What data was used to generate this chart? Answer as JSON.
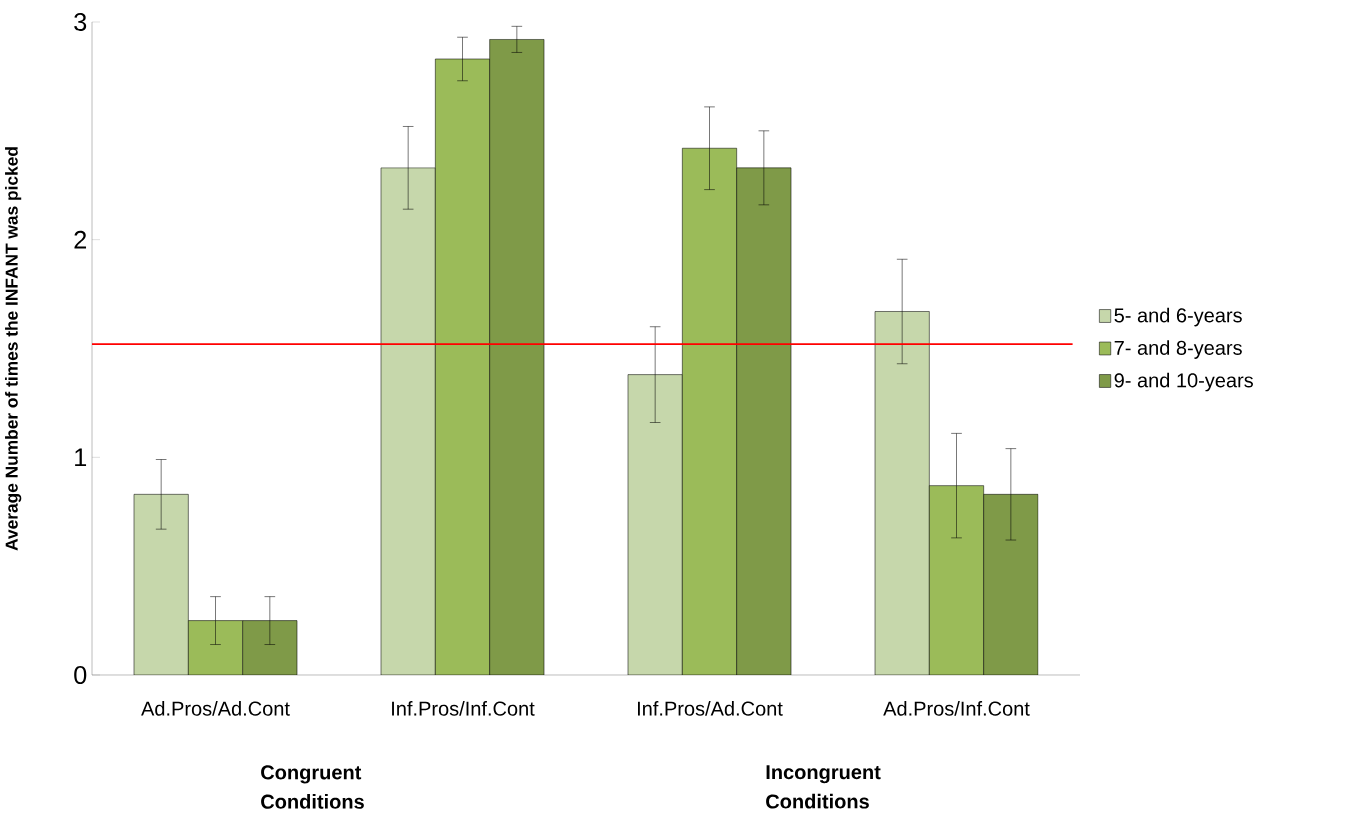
{
  "chart_data": {
    "type": "bar",
    "ylabel": "Average Number of times the INFANT was picked",
    "categories": [
      "Ad.Pros/Ad.Cont",
      "Inf.Pros/Inf.Cont",
      "Inf.Pros/Ad.Cont",
      "Ad.Pros/Inf.Cont"
    ],
    "series": [
      {
        "name": "5- and 6-years",
        "color": "#c6d7ab",
        "values": [
          0.83,
          2.33,
          1.38,
          1.67
        ],
        "errors": [
          0.16,
          0.19,
          0.22,
          0.24
        ]
      },
      {
        "name": "7- and 8-years",
        "color": "#9bbb59",
        "values": [
          0.25,
          2.83,
          2.42,
          0.87
        ],
        "errors": [
          0.11,
          0.1,
          0.19,
          0.24
        ]
      },
      {
        "name": "9- and 10-years",
        "color": "#7f9a48",
        "values": [
          0.25,
          2.92,
          2.33,
          0.83
        ],
        "errors": [
          0.11,
          0.06,
          0.17,
          0.21
        ]
      }
    ],
    "ylim": [
      0,
      3
    ],
    "yticks": [
      0,
      1,
      2,
      3
    ],
    "grid": false,
    "legend": "right",
    "ref_lines": [
      {
        "axis": "y",
        "value": 1.52,
        "color": "#ff0000"
      }
    ],
    "annotations": [
      "Congruent Conditions",
      "Incongruent Conditions"
    ]
  }
}
